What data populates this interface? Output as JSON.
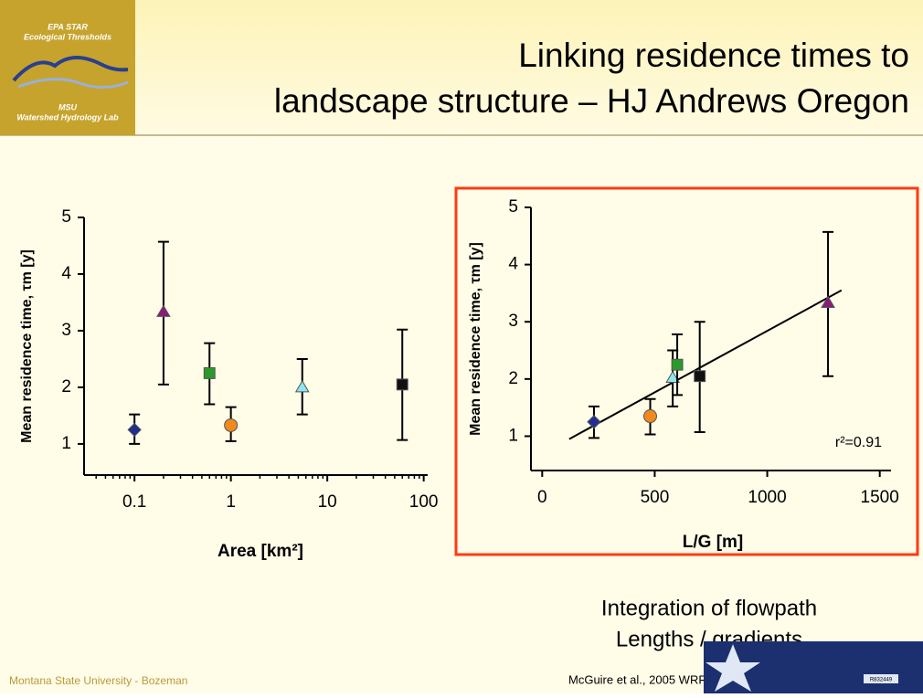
{
  "slide": {
    "logo_lines": [
      "EPA STAR",
      "Ecological Thresholds",
      "MSU",
      "Watershed Hydrology Lab"
    ],
    "title_lines": [
      "Linking residence times to",
      "landscape structure – HJ Andrews Oregon"
    ],
    "caption_lines": [
      "Integration of flowpath",
      "Lengths / gradients"
    ],
    "footer_left": "Montana State University - Bozeman",
    "citation": "McGuire et al., 2005 WRR",
    "grant": "R832449"
  },
  "chart_data": [
    {
      "type": "scatter",
      "xlabel": "Area [km²]",
      "ylabel": "Mean residence time, τm [y]",
      "xscale": "log",
      "x": [
        0.1,
        0.2,
        0.6,
        1.0,
        5.5,
        60
      ],
      "y": [
        1.25,
        3.33,
        2.25,
        1.33,
        2.0,
        2.05
      ],
      "lower": [
        1.0,
        2.05,
        1.7,
        1.05,
        1.52,
        1.07
      ],
      "upper": [
        1.52,
        4.57,
        2.78,
        1.65,
        2.5,
        3.02
      ],
      "markers": [
        "diamond",
        "triangle",
        "square",
        "circle",
        "triangle",
        "square"
      ],
      "colors": [
        "#1f2f8f",
        "#8b1a7a",
        "#2a9a2a",
        "#f08a1e",
        "#8ee6f0",
        "#111111"
      ],
      "xlim": [
        0.03,
        110
      ],
      "ylim": [
        0.45,
        5
      ],
      "xticks": [
        0.1,
        1,
        10,
        100
      ],
      "yticks": [
        1,
        2,
        3,
        4,
        5
      ],
      "xminorticks": [
        0.04,
        0.05,
        0.06,
        0.07,
        0.08,
        0.09,
        0.2,
        0.3,
        0.4,
        0.5,
        0.6,
        0.7,
        0.8,
        0.9,
        2,
        3,
        4,
        5,
        6,
        7,
        8,
        9,
        20,
        30,
        40,
        50,
        60,
        70,
        80,
        90
      ]
    },
    {
      "type": "scatter",
      "xlabel": "L/G [m]",
      "ylabel": "Mean residence time, τm [y]",
      "xscale": "linear",
      "x": [
        230,
        480,
        580,
        600,
        700,
        1270
      ],
      "y": [
        1.25,
        1.35,
        2.02,
        2.25,
        2.05,
        3.33
      ],
      "lower": [
        0.97,
        1.03,
        1.52,
        1.72,
        1.07,
        2.05
      ],
      "upper": [
        1.52,
        1.65,
        2.5,
        2.78,
        3.0,
        4.57
      ],
      "markers": [
        "diamond",
        "circle",
        "triangle",
        "square",
        "square",
        "triangle"
      ],
      "colors": [
        "#1f2f8f",
        "#f08a1e",
        "#8ee6f0",
        "#2a9a2a",
        "#111111",
        "#8b1a7a"
      ],
      "fit": {
        "x": [
          120,
          1330
        ],
        "y": [
          0.95,
          3.55
        ]
      },
      "annotation": "r²=0.91",
      "xlim": [
        -50,
        1550
      ],
      "ylim": [
        0.4,
        5
      ],
      "xticks": [
        0,
        500,
        1000,
        1500
      ],
      "yticks": [
        1,
        2,
        3,
        4,
        5
      ]
    }
  ]
}
